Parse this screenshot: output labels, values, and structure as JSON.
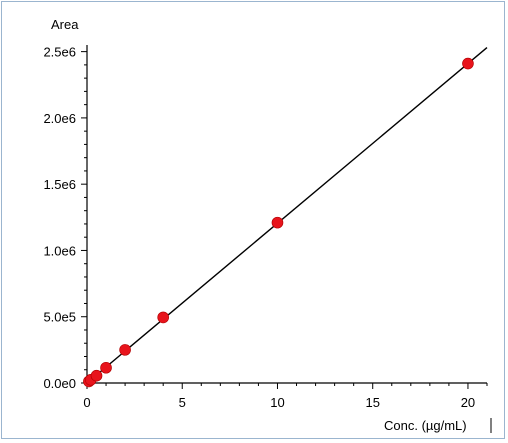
{
  "chart_data": {
    "type": "scatter",
    "title": "",
    "xlabel": "Conc. (µg/mL)",
    "ylabel": "Area",
    "xlim": [
      0,
      21
    ],
    "ylim": [
      0,
      2550000
    ],
    "x_ticks": [
      0,
      5,
      10,
      15,
      20
    ],
    "x_tick_labels": [
      "0",
      "5",
      "10",
      "15",
      "20"
    ],
    "y_ticks": [
      0,
      500000,
      1000000,
      1500000,
      2000000,
      2500000
    ],
    "y_tick_labels": [
      "0.0e0",
      "5.0e5",
      "1.0e6",
      "1.5e6",
      "2.0e6",
      "2.5e6"
    ],
    "grid": false,
    "series": [
      {
        "points": [
          {
            "x": 0.1,
            "y": 12000
          },
          {
            "x": 0.2,
            "y": 24000
          },
          {
            "x": 0.5,
            "y": 55000
          },
          {
            "x": 1,
            "y": 115000
          },
          {
            "x": 2,
            "y": 250000
          },
          {
            "x": 4,
            "y": 495000
          },
          {
            "x": 10,
            "y": 1210000
          },
          {
            "x": 20,
            "y": 2410000
          }
        ],
        "color": "#e8141c"
      }
    ],
    "fit_line": {
      "slope": 120500,
      "intercept": 0,
      "x_range": [
        0,
        21
      ],
      "color": "#000000"
    }
  }
}
